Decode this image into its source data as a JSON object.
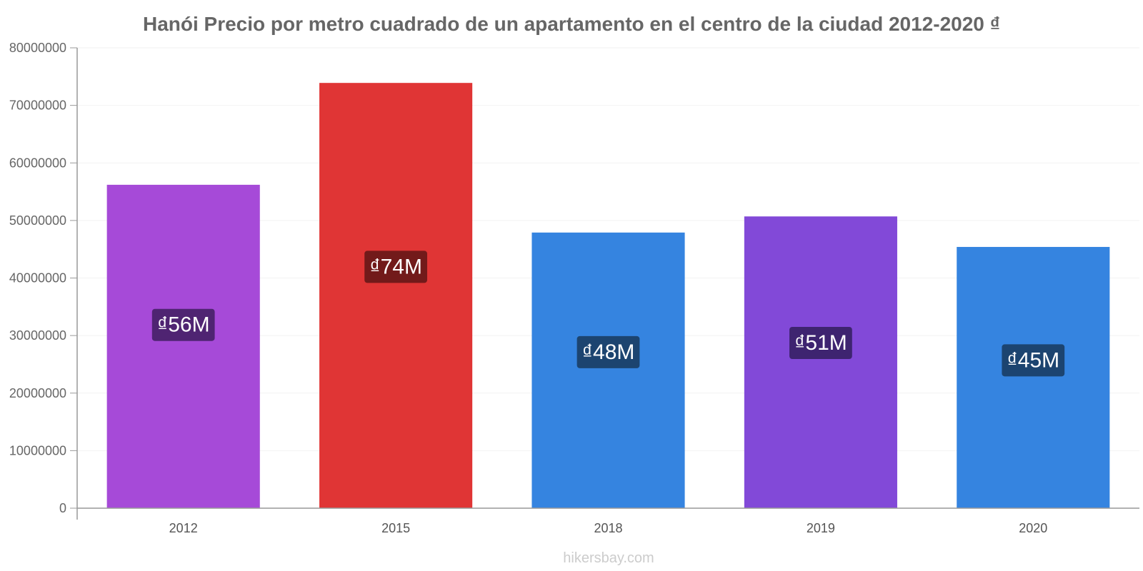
{
  "chart_data": {
    "type": "bar",
    "title": "Hanói Precio por metro cuadrado de un apartamento en el centro de la ciudad 2012-2020 ₫",
    "categories": [
      "2012",
      "2015",
      "2018",
      "2019",
      "2020"
    ],
    "values": [
      56200000,
      73900000,
      47900000,
      50700000,
      45400000
    ],
    "value_labels": [
      "₫56M",
      "₫74M",
      "₫48M",
      "₫51M",
      "₫45M"
    ],
    "bar_colors": [
      "#a64ad8",
      "#e03535",
      "#3584e0",
      "#8249d8",
      "#3584e0"
    ],
    "label_bg_colors": [
      "#4f2472",
      "#721a1a",
      "#1c4470",
      "#3e2470",
      "#1c4470"
    ],
    "ylim": [
      0,
      80000000
    ],
    "yticks": [
      "0",
      "10000000",
      "20000000",
      "30000000",
      "40000000",
      "50000000",
      "60000000",
      "70000000",
      "80000000"
    ],
    "ytick_values": [
      0,
      10000000,
      20000000,
      30000000,
      40000000,
      50000000,
      60000000,
      70000000,
      80000000
    ],
    "xlabel": "",
    "ylabel": "",
    "grid": true,
    "legend": "none"
  },
  "footer": {
    "source": "hikersbay.com"
  }
}
